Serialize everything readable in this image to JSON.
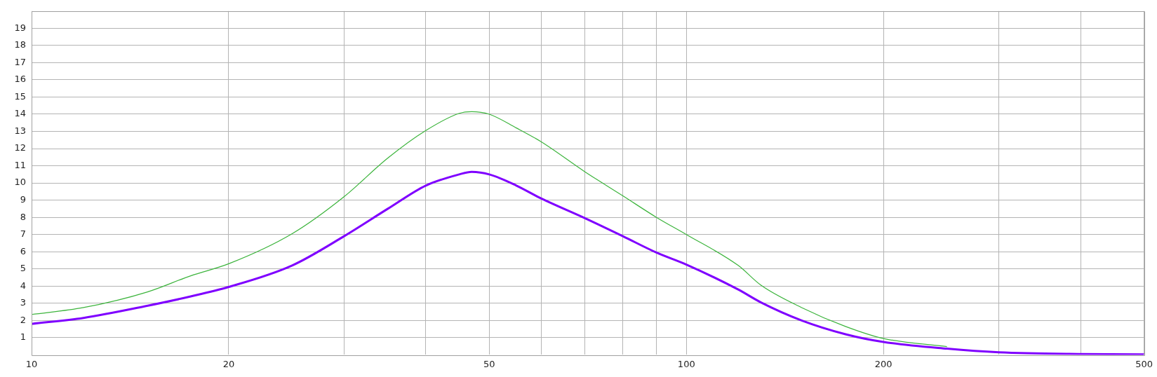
{
  "chart_data": {
    "type": "line",
    "log": "x",
    "grid": true,
    "legend": false,
    "marker": "none",
    "line_style": "solid",
    "xlim": [
      10,
      500
    ],
    "ylim": [
      0,
      20
    ],
    "xticks": [
      10,
      20,
      {
        "value": 30,
        "label": null
      },
      {
        "value": 40,
        "label": null
      },
      50,
      {
        "value": 60,
        "label": null
      },
      {
        "value": 70,
        "label": null
      },
      {
        "value": 80,
        "label": null
      },
      {
        "value": 90,
        "label": null
      },
      100,
      200,
      {
        "value": 300,
        "label": null
      },
      {
        "value": 400,
        "label": null
      },
      500
    ],
    "yticks": [
      1,
      2,
      3,
      4,
      5,
      6,
      7,
      8,
      9,
      10,
      11,
      12,
      13,
      14,
      15,
      16,
      17,
      18,
      19
    ],
    "series": [
      {
        "color": "#3cb43c",
        "x": [
          10,
          12,
          15,
          17.5,
          20,
          25,
          30,
          35,
          40,
          45,
          47,
          50,
          55,
          60,
          70,
          80,
          90,
          100,
          120,
          130,
          150,
          175,
          200,
          250
        ],
        "values": [
          2.35,
          2.75,
          3.65,
          4.6,
          5.3,
          7.05,
          9.2,
          11.45,
          13.05,
          14.05,
          14.15,
          14,
          13.2,
          12.4,
          10.65,
          9.25,
          8,
          7,
          5.2,
          4.05,
          2.75,
          1.65,
          0.95,
          0.48
        ]
      },
      {
        "color": "#7f00ff",
        "x": [
          10,
          12,
          15,
          17.5,
          20,
          25,
          30,
          35,
          40,
          45,
          47,
          50,
          55,
          60,
          70,
          80,
          90,
          100,
          120,
          130,
          150,
          175,
          200,
          250,
          300,
          400,
          500
        ],
        "values": [
          1.8,
          2.15,
          2.85,
          3.4,
          3.95,
          5.2,
          6.9,
          8.5,
          9.85,
          10.5,
          10.65,
          10.5,
          9.85,
          9.1,
          7.95,
          6.9,
          5.95,
          5.25,
          3.8,
          3.05,
          2,
          1.2,
          0.75,
          0.36,
          0.15,
          0.05,
          0.03
        ]
      }
    ]
  }
}
